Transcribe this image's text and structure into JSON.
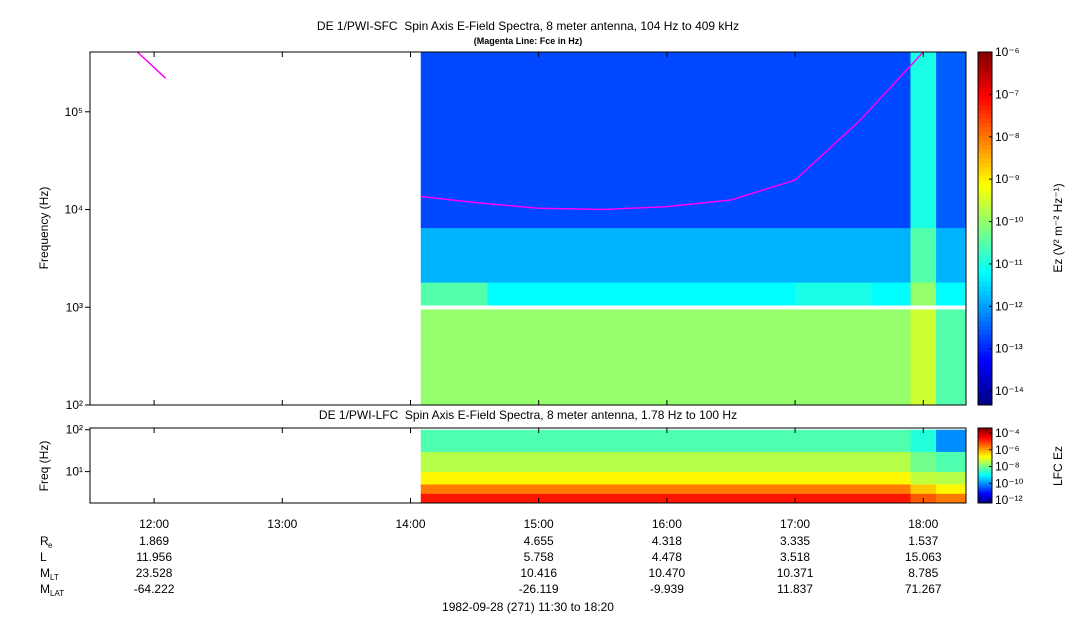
{
  "chart_data": [
    {
      "type": "spectrogram",
      "title": "DE 1/PWI-SFC  Spin Axis E-Field Spectra, 8 meter antenna, 104 Hz to 409 kHz",
      "subtitle": "(Magenta Line: Fce in Hz)",
      "y_label": "Frequency (Hz)",
      "colorbar_label": "Ez (V² m⁻² Hz⁻¹)",
      "colormap": "jet",
      "log_scale": true,
      "xlim": [
        11.5,
        18.3333
      ],
      "ylim": [
        100,
        409000
      ],
      "yticks": [
        {
          "value": 100,
          "label": "10²"
        },
        {
          "value": 1000,
          "label": "10³"
        },
        {
          "value": 10000,
          "label": "10⁴"
        },
        {
          "value": 100000,
          "label": "10⁵"
        }
      ],
      "zlim": [
        4.7e-15,
        1e-06
      ],
      "zticks": [
        {
          "value": 1e-06,
          "label": "10⁻⁶"
        },
        {
          "value": 1e-07,
          "label": "10⁻⁷"
        },
        {
          "value": 1e-08,
          "label": "10⁻⁸"
        },
        {
          "value": 1e-09,
          "label": "10⁻⁹"
        },
        {
          "value": 1e-10,
          "label": "10⁻¹⁰"
        },
        {
          "value": 1e-11,
          "label": "10⁻¹¹"
        },
        {
          "value": 1e-12,
          "label": "10⁻¹²"
        },
        {
          "value": 1e-13,
          "label": "10⁻¹³"
        },
        {
          "value": 1e-14,
          "label": "10⁻¹⁴"
        }
      ],
      "x_edges": [
        14.08,
        14.6,
        15.2,
        15.8,
        16.4,
        17,
        17.6,
        17.9,
        18.1,
        18.33
      ],
      "y_bins": [
        [
          100,
          950
        ],
        [
          1050,
          1800
        ],
        [
          1800,
          6500
        ],
        [
          6500,
          409000
        ]
      ],
      "z": [
        [
          1e-10,
          1e-10,
          1e-10,
          1e-10,
          1e-10,
          1e-10,
          1e-10,
          3e-10,
          3e-11
        ],
        [
          3e-11,
          6e-12,
          6e-12,
          6e-12,
          6e-12,
          1e-11,
          6e-12,
          1e-10,
          6e-12
        ],
        [
          1.5e-12,
          1.5e-12,
          1.5e-12,
          1.5e-12,
          1.5e-12,
          1.5e-12,
          1.5e-12,
          3e-11,
          1.5e-12
        ],
        [
          2e-13,
          2e-13,
          2e-13,
          2e-13,
          2e-13,
          2e-13,
          2e-13,
          1e-11,
          3e-13
        ]
      ],
      "series": [
        {
          "color": "#ff00ff",
          "x": [
            11.87,
            12.09,
            null,
            14.08,
            14.5,
            15,
            15.5,
            16,
            16.5,
            17,
            17.5,
            18
          ],
          "values": [
            409000,
            220000,
            null,
            13600,
            11800,
            10300,
            10000,
            10700,
            12500,
            20000,
            80000,
            409000
          ]
        }
      ]
    },
    {
      "type": "spectrogram",
      "title": "DE 1/PWI-LFC  Spin Axis E-Field Spectra, 8 meter antenna, 1.78 Hz to 100 Hz",
      "y_label": "Freq (Hz)",
      "colorbar_label": "LFC Ez",
      "colormap": "jet",
      "log_scale": true,
      "xlim": [
        11.5,
        18.3333
      ],
      "xticks": [
        {
          "value": 12,
          "label": "12:00"
        },
        {
          "value": 13,
          "label": "13:00"
        },
        {
          "value": 14,
          "label": "14:00"
        },
        {
          "value": 15,
          "label": "15:00"
        },
        {
          "value": 16,
          "label": "16:00"
        },
        {
          "value": 17,
          "label": "17:00"
        },
        {
          "value": 18,
          "label": "18:00"
        }
      ],
      "ylim": [
        1.78,
        110
      ],
      "yticks": [
        {
          "value": 10,
          "label": "10¹"
        },
        {
          "value": 100,
          "label": "10²"
        }
      ],
      "zlim": [
        4.4e-13,
        0.0004
      ],
      "zticks": [
        {
          "value": 0.0001,
          "label": "10⁻⁴"
        },
        {
          "value": 1e-06,
          "label": "10⁻⁶"
        },
        {
          "value": 1e-08,
          "label": "10⁻⁸"
        },
        {
          "value": 1e-10,
          "label": "10⁻¹⁰"
        },
        {
          "value": 1e-12,
          "label": "10⁻¹²"
        }
      ],
      "x_edges": [
        14.08,
        14.6,
        15.2,
        15.8,
        16.4,
        17,
        17.6,
        17.9,
        18.1,
        18.33
      ],
      "y_bins": [
        [
          1.78,
          3
        ],
        [
          3,
          5
        ],
        [
          5,
          10
        ],
        [
          10,
          30
        ],
        [
          30,
          100
        ]
      ],
      "z": [
        [
          2e-05,
          2e-05,
          2e-05,
          2e-05,
          2e-05,
          2e-05,
          2e-05,
          5e-06,
          2.5e-06
        ],
        [
          2.5e-06,
          2.5e-06,
          2.5e-06,
          2.5e-06,
          2.5e-06,
          2.5e-06,
          2.5e-06,
          5e-07,
          2e-07
        ],
        [
          2e-07,
          2e-07,
          2e-07,
          2e-07,
          2e-07,
          2e-07,
          2e-07,
          5e-08,
          4e-08
        ],
        [
          4e-08,
          4e-08,
          4e-08,
          4e-08,
          4e-08,
          4e-08,
          4e-08,
          1e-08,
          5e-09
        ],
        [
          5e-09,
          5e-09,
          5e-09,
          5e-09,
          5e-09,
          5e-09,
          5e-09,
          2e-09,
          1e-10
        ]
      ]
    }
  ],
  "ephemeris": {
    "labels": [
      {
        "main": "R",
        "sub": "e"
      },
      {
        "main": "L",
        "sub": ""
      },
      {
        "main": "M",
        "sub": "LT"
      },
      {
        "main": "M",
        "sub": "LAT"
      }
    ],
    "rows": [
      [
        "1.869",
        null,
        null,
        "4.655",
        "4.318",
        "3.335",
        "1.537"
      ],
      [
        "11.956",
        null,
        null,
        "5.758",
        "4.478",
        "3.518",
        "15.063"
      ],
      [
        "23.528",
        null,
        null,
        "10.416",
        "10.470",
        "10.371",
        "8.785"
      ],
      [
        "-64.222",
        null,
        null,
        "-26.119",
        "-9.939",
        "11.837",
        "71.267"
      ]
    ]
  },
  "footer": "1982-09-28 (271) 11:30 to 18:20"
}
